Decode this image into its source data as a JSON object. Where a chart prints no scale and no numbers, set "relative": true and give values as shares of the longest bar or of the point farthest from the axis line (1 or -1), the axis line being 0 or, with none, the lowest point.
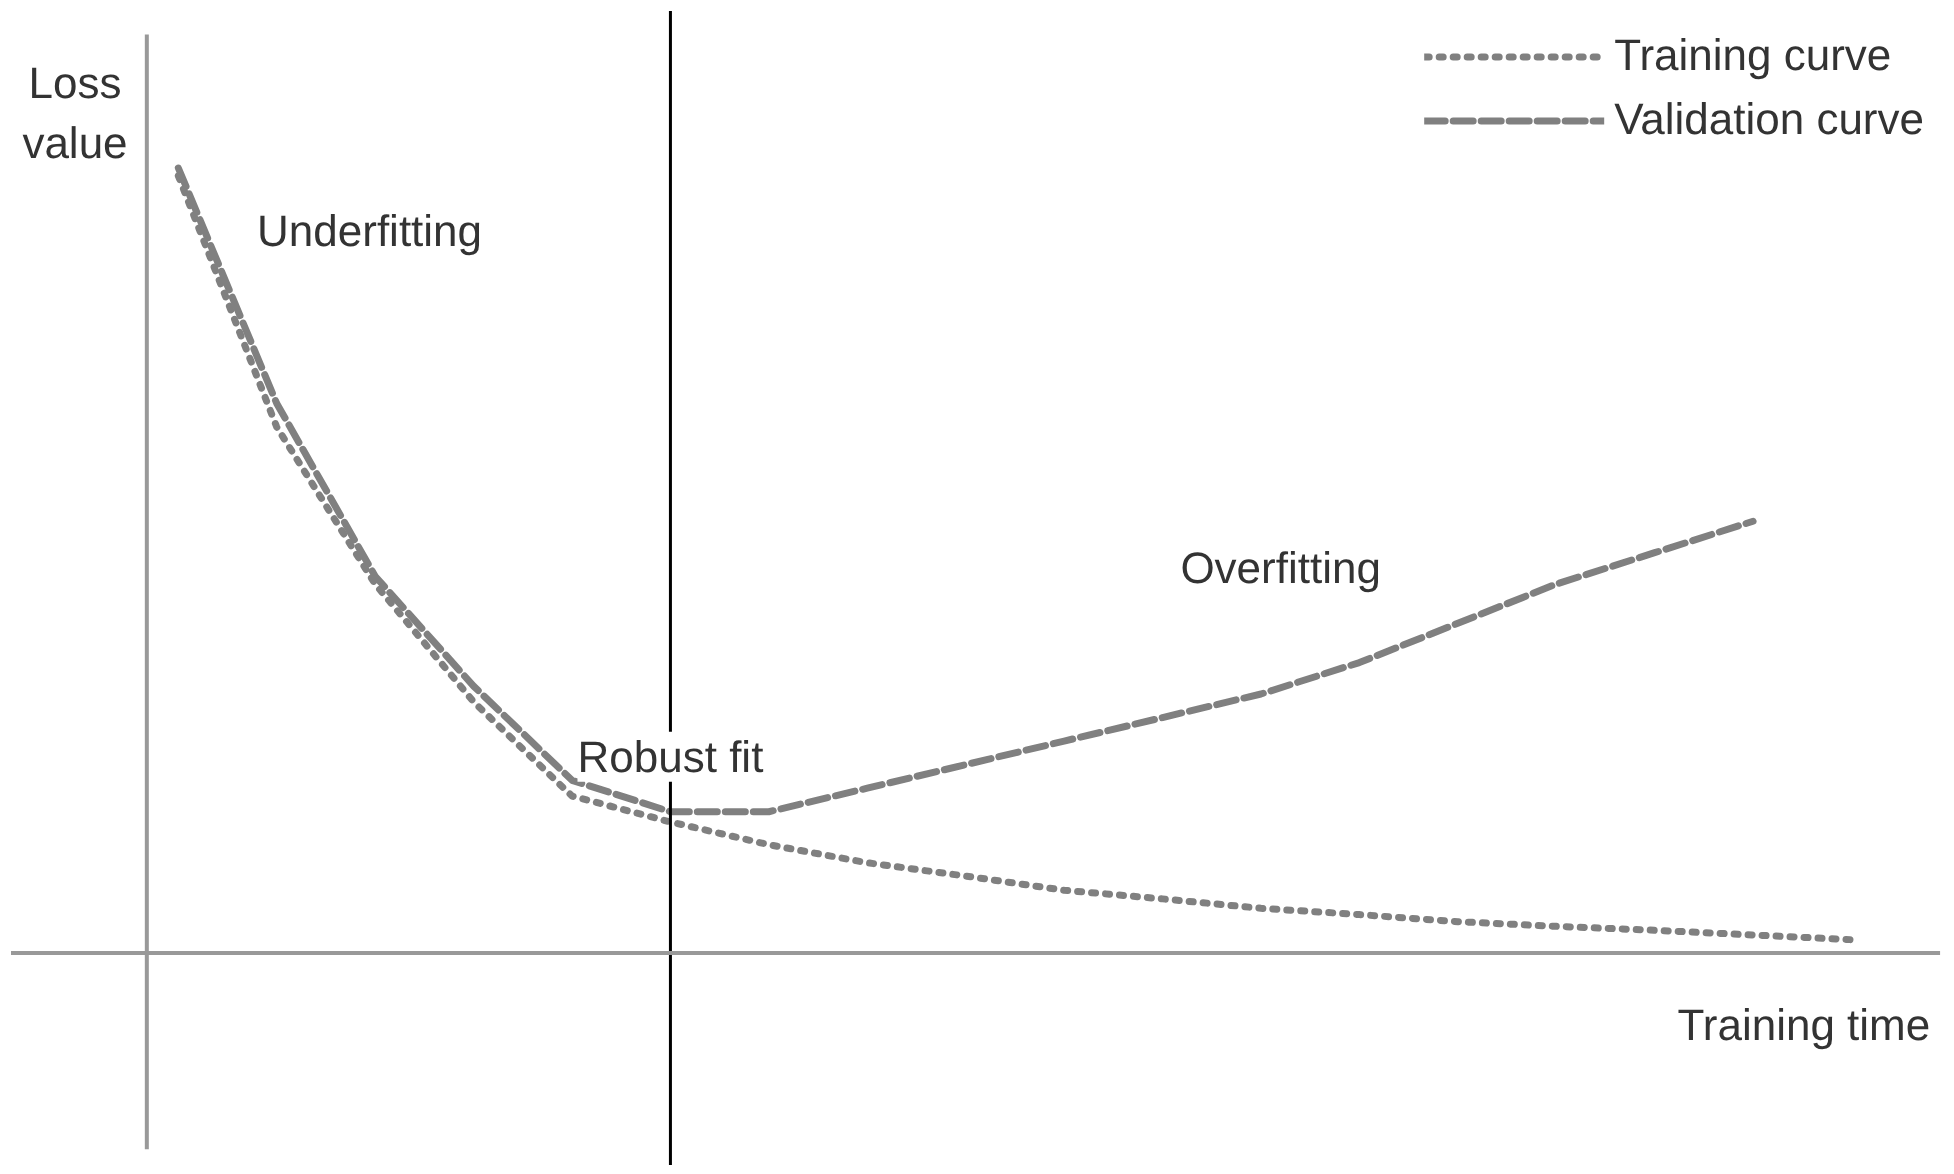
{
  "chart_data": {
    "type": "line",
    "relative": true,
    "xlabel": "Training time",
    "ylabel": "Loss\nvalue",
    "categories": [
      null,
      null,
      null,
      null,
      null,
      null,
      null,
      null,
      null,
      null,
      null,
      null,
      null,
      null,
      null,
      null,
      null,
      null
    ],
    "series": [
      {
        "name": "Training curve",
        "color": "#808080",
        "line_style": "dotted",
        "values": [
          0.99,
          0.67,
          0.47,
          0.32,
          0.2,
          0.167,
          0.138,
          0.115,
          0.098,
          0.08,
          0.069,
          0.057,
          0.049,
          0.04,
          0.034,
          0.029,
          0.023,
          0.017
        ]
      },
      {
        "name": "Validation curve",
        "color": "#808080",
        "line_style": "dashed",
        "values": [
          1.0,
          0.7,
          0.48,
          0.34,
          0.22,
          0.18,
          0.18,
          0.21,
          0.24,
          0.27,
          0.3,
          0.33,
          0.37,
          0.42,
          0.47,
          0.51,
          0.55,
          null
        ]
      }
    ],
    "annotations": [
      "Underfitting",
      "Robust fit",
      "Overfitting"
    ],
    "legend": "top right",
    "grid": false
  }
}
